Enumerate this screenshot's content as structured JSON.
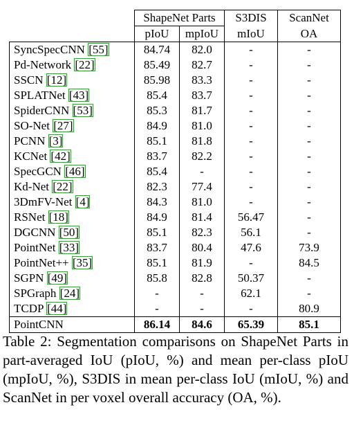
{
  "table": {
    "group_headers": [
      "ShapeNet Parts",
      "S3DIS",
      "ScanNet"
    ],
    "sub_headers": [
      "pIoU",
      "mpIoU",
      "mIoU",
      "OA"
    ],
    "rows": [
      {
        "method": "SyncSpecCNN",
        "ref": "55",
        "piou": "84.74",
        "mpiou": "82.0",
        "miou": "-",
        "oa": "-"
      },
      {
        "method": "Pd-Network",
        "ref": "22",
        "piou": "85.49",
        "mpiou": "82.7",
        "miou": "-",
        "oa": "-"
      },
      {
        "method": "SSCN",
        "ref": "12",
        "piou": "85.98",
        "mpiou": "83.3",
        "miou": "-",
        "oa": "-"
      },
      {
        "method": "SPLATNet",
        "ref": "43",
        "piou": "85.4",
        "mpiou": "83.7",
        "miou": "-",
        "oa": "-"
      },
      {
        "method": "SpiderCNN",
        "ref": "53",
        "piou": "85.3",
        "mpiou": "81.7",
        "miou": "-",
        "oa": "-"
      },
      {
        "method": "SO-Net",
        "ref": "27",
        "piou": "84.9",
        "mpiou": "81.0",
        "miou": "-",
        "oa": "-"
      },
      {
        "method": "PCNN",
        "ref": "3",
        "piou": "85.1",
        "mpiou": "81.8",
        "miou": "-",
        "oa": "-"
      },
      {
        "method": "KCNet",
        "ref": "42",
        "piou": "83.7",
        "mpiou": "82.2",
        "miou": "-",
        "oa": "-"
      },
      {
        "method": "SpecGCN",
        "ref": "46",
        "piou": "85.4",
        "mpiou": "-",
        "miou": "-",
        "oa": "-"
      },
      {
        "method": "Kd-Net",
        "ref": "22",
        "piou": "82.3",
        "mpiou": "77.4",
        "miou": "-",
        "oa": "-"
      },
      {
        "method": "3DmFV-Net",
        "ref": "4",
        "piou": "84.3",
        "mpiou": "81.0",
        "miou": "-",
        "oa": "-"
      },
      {
        "method": "RSNet",
        "ref": "18",
        "piou": "84.9",
        "mpiou": "81.4",
        "miou": "56.47",
        "oa": "-"
      },
      {
        "method": "DGCNN",
        "ref": "50",
        "piou": "85.1",
        "mpiou": "82.3",
        "miou": "56.1",
        "oa": "-"
      },
      {
        "method": "PointNet",
        "ref": "33",
        "piou": "83.7",
        "mpiou": "80.4",
        "miou": "47.6",
        "oa": "73.9"
      },
      {
        "method": "PointNet++",
        "ref": "35",
        "piou": "85.1",
        "mpiou": "81.9",
        "miou": "-",
        "oa": "84.5"
      },
      {
        "method": "SGPN",
        "ref": "49",
        "piou": "85.8",
        "mpiou": "82.8",
        "miou": "50.37",
        "oa": "-"
      },
      {
        "method": "SPGraph",
        "ref": "24",
        "piou": "-",
        "mpiou": "-",
        "miou": "62.1",
        "oa": "-"
      },
      {
        "method": "TCDP",
        "ref": "44",
        "piou": "-",
        "mpiou": "-",
        "miou": "-",
        "oa": "80.9"
      }
    ],
    "last_row": {
      "method": "PointCNN",
      "piou": "86.14",
      "mpiou": "84.6",
      "miou": "65.39",
      "oa": "85.1"
    }
  },
  "caption": "Table 2: Segmentation comparisons on ShapeNet Parts in part-averaged IoU (pIoU, %) and mean per-class pIoU (mpIoU, %), S3DIS in mean per-class IoU (mIoU, %) and ScanNet in per voxel overall accuracy (OA, %).",
  "colors": {
    "citation_box": "#00c000",
    "text": "#000000"
  }
}
